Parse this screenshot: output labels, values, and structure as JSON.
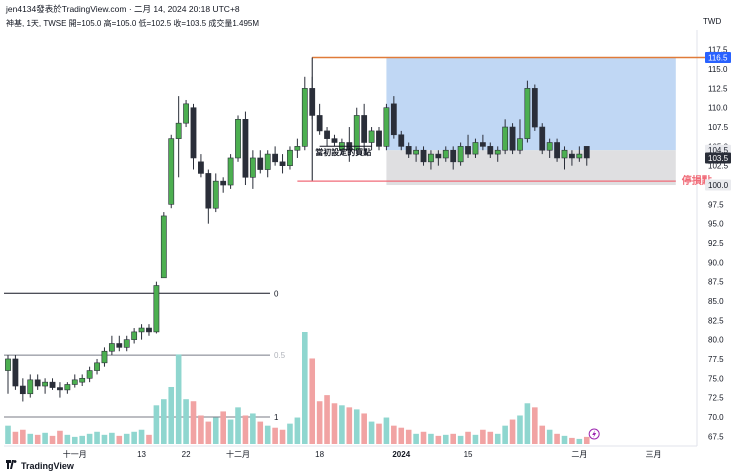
{
  "header": {
    "title": "jen4134發表於TradingView.com · 二月 14, 2024 20:18 UTC+8",
    "subtitle": "神基, 1天, TWSE  開=105.0  高=105.0  低=102.5  收=103.5  成交量1.495M",
    "currency": "TWD"
  },
  "footer": {
    "brand": "TradingView"
  },
  "chart_data": {
    "type": "candlestick",
    "ylim": [
      66.5,
      118.5
    ],
    "y_ticks": [
      "117.5",
      "115.0",
      "112.5",
      "110.0",
      "107.5",
      "105.0",
      "102.5",
      "100.0",
      "97.5",
      "95.0",
      "92.5",
      "90.0",
      "87.5",
      "85.0",
      "82.5",
      "80.0",
      "77.5",
      "75.0",
      "72.5",
      "70.0",
      "67.5"
    ],
    "x_ticks": [
      {
        "i": 9,
        "label": "十一月"
      },
      {
        "i": 18,
        "label": "13"
      },
      {
        "i": 24,
        "label": "22"
      },
      {
        "i": 31,
        "label": "十二月"
      },
      {
        "i": 42,
        "label": "18"
      },
      {
        "i": 53,
        "label": "2024"
      },
      {
        "i": 62,
        "label": "15"
      },
      {
        "i": 77,
        "label": "二月"
      },
      {
        "i": 87,
        "label": "三月"
      },
      {
        "i": 100,
        "label": "18"
      }
    ],
    "price_labels": [
      {
        "value": 116.5,
        "label": "116.5",
        "style": "blue"
      },
      {
        "value": 104.5,
        "label": "104.5",
        "style": "light"
      },
      {
        "value": 103.5,
        "label": "103.5",
        "style": "dark"
      },
      {
        "value": 100.0,
        "label": "100.0",
        "style": "light"
      }
    ],
    "annotations": {
      "target_line": {
        "value": 116.5,
        "color": "#e07b39",
        "from_i": 41,
        "to_i": 95
      },
      "stop_line": {
        "value": 100.5,
        "color": "#f06b78",
        "from_i": 39,
        "to_i": 90,
        "label": "停損點"
      },
      "entry_label": "當初設定的買點",
      "entry_value": 104.5,
      "profit_box": {
        "top": 116.5,
        "bottom": 104.5,
        "from_i": 51,
        "to_i": 90,
        "color": "#b5d0f2"
      },
      "loss_box": {
        "top": 104.5,
        "bottom": 100.0,
        "from_i": 51,
        "to_i": 90,
        "color": "#d9d9dc"
      },
      "fib_levels": [
        {
          "label": "0",
          "price": 86.0
        },
        {
          "label": "0.5",
          "price": 78.0
        },
        {
          "label": "1",
          "price": 70.0
        }
      ]
    },
    "candles": [
      {
        "o": 76.0,
        "h": 78.0,
        "l": 73.0,
        "c": 77.5
      },
      {
        "o": 77.5,
        "h": 78.0,
        "l": 73.5,
        "c": 74.0
      },
      {
        "o": 74.0,
        "h": 75.0,
        "l": 72.0,
        "c": 73.0
      },
      {
        "o": 73.0,
        "h": 75.5,
        "l": 72.5,
        "c": 74.8
      },
      {
        "o": 74.8,
        "h": 75.5,
        "l": 73.5,
        "c": 74.0
      },
      {
        "o": 74.0,
        "h": 75.0,
        "l": 73.0,
        "c": 74.5
      },
      {
        "o": 74.5,
        "h": 75.0,
        "l": 73.5,
        "c": 73.8
      },
      {
        "o": 73.8,
        "h": 74.5,
        "l": 72.5,
        "c": 73.5
      },
      {
        "o": 73.5,
        "h": 74.5,
        "l": 73.0,
        "c": 74.2
      },
      {
        "o": 74.2,
        "h": 75.5,
        "l": 73.8,
        "c": 74.8
      },
      {
        "o": 74.5,
        "h": 75.5,
        "l": 74.0,
        "c": 75.0
      },
      {
        "o": 75.0,
        "h": 76.5,
        "l": 74.5,
        "c": 76.0
      },
      {
        "o": 76.0,
        "h": 77.5,
        "l": 75.5,
        "c": 77.0
      },
      {
        "o": 77.0,
        "h": 79.0,
        "l": 76.5,
        "c": 78.5
      },
      {
        "o": 78.5,
        "h": 80.5,
        "l": 78.0,
        "c": 79.5
      },
      {
        "o": 79.5,
        "h": 80.5,
        "l": 78.5,
        "c": 79.0
      },
      {
        "o": 79.0,
        "h": 80.5,
        "l": 78.5,
        "c": 80.0
      },
      {
        "o": 80.0,
        "h": 81.5,
        "l": 79.5,
        "c": 81.0
      },
      {
        "o": 81.0,
        "h": 82.0,
        "l": 80.0,
        "c": 81.5
      },
      {
        "o": 81.5,
        "h": 82.0,
        "l": 80.5,
        "c": 81.0
      },
      {
        "o": 81.0,
        "h": 87.5,
        "l": 80.8,
        "c": 87.0
      },
      {
        "o": 88.0,
        "h": 96.5,
        "l": 88.0,
        "c": 96.0
      },
      {
        "o": 97.5,
        "h": 106.5,
        "l": 97.0,
        "c": 106.0
      },
      {
        "o": 106.0,
        "h": 111.5,
        "l": 101.0,
        "c": 108.0
      },
      {
        "o": 108.0,
        "h": 111.0,
        "l": 107.5,
        "c": 110.5
      },
      {
        "o": 110.0,
        "h": 110.5,
        "l": 102.0,
        "c": 103.5
      },
      {
        "o": 103.0,
        "h": 104.0,
        "l": 101.0,
        "c": 101.5
      },
      {
        "o": 101.5,
        "h": 102.0,
        "l": 95.0,
        "c": 97.0
      },
      {
        "o": 97.0,
        "h": 101.5,
        "l": 96.5,
        "c": 100.5
      },
      {
        "o": 100.5,
        "h": 101.0,
        "l": 99.0,
        "c": 100.0
      },
      {
        "o": 100.0,
        "h": 104.0,
        "l": 99.5,
        "c": 103.5
      },
      {
        "o": 103.5,
        "h": 109.0,
        "l": 103.0,
        "c": 108.5
      },
      {
        "o": 108.5,
        "h": 109.5,
        "l": 100.0,
        "c": 101.0
      },
      {
        "o": 101.0,
        "h": 104.5,
        "l": 99.5,
        "c": 103.5
      },
      {
        "o": 103.5,
        "h": 104.5,
        "l": 101.5,
        "c": 102.0
      },
      {
        "o": 102.0,
        "h": 104.5,
        "l": 101.0,
        "c": 104.0
      },
      {
        "o": 104.0,
        "h": 105.0,
        "l": 102.5,
        "c": 103.0
      },
      {
        "o": 103.0,
        "h": 104.0,
        "l": 101.5,
        "c": 102.5
      },
      {
        "o": 102.5,
        "h": 105.0,
        "l": 102.0,
        "c": 104.5
      },
      {
        "o": 104.5,
        "h": 106.0,
        "l": 103.5,
        "c": 105.0
      },
      {
        "o": 105.0,
        "h": 114.0,
        "l": 104.5,
        "c": 112.5
      },
      {
        "o": 112.5,
        "h": 114.0,
        "l": 108.5,
        "c": 109.0
      },
      {
        "o": 109.0,
        "h": 110.5,
        "l": 106.5,
        "c": 107.0
      },
      {
        "o": 107.0,
        "h": 107.5,
        "l": 105.0,
        "c": 106.0
      },
      {
        "o": 106.0,
        "h": 106.5,
        "l": 105.0,
        "c": 105.5
      },
      {
        "o": 104.5,
        "h": 106.0,
        "l": 104.0,
        "c": 105.5
      },
      {
        "o": 105.5,
        "h": 107.5,
        "l": 103.0,
        "c": 104.5
      },
      {
        "o": 104.5,
        "h": 110.0,
        "l": 104.0,
        "c": 109.0
      },
      {
        "o": 109.0,
        "h": 110.5,
        "l": 104.5,
        "c": 105.5
      },
      {
        "o": 105.5,
        "h": 107.5,
        "l": 104.5,
        "c": 107.0
      },
      {
        "o": 107.0,
        "h": 107.5,
        "l": 104.5,
        "c": 105.0
      },
      {
        "o": 105.0,
        "h": 110.5,
        "l": 104.5,
        "c": 110.0
      },
      {
        "o": 110.5,
        "h": 111.5,
        "l": 106.0,
        "c": 106.5
      },
      {
        "o": 106.5,
        "h": 107.0,
        "l": 104.5,
        "c": 105.0
      },
      {
        "o": 105.0,
        "h": 105.5,
        "l": 103.5,
        "c": 104.0
      },
      {
        "o": 104.0,
        "h": 105.0,
        "l": 103.0,
        "c": 104.5
      },
      {
        "o": 104.5,
        "h": 105.0,
        "l": 102.5,
        "c": 103.0
      },
      {
        "o": 103.0,
        "h": 104.5,
        "l": 102.0,
        "c": 104.0
      },
      {
        "o": 104.0,
        "h": 104.5,
        "l": 102.5,
        "c": 103.5
      },
      {
        "o": 103.5,
        "h": 105.0,
        "l": 103.0,
        "c": 104.5
      },
      {
        "o": 104.5,
        "h": 105.0,
        "l": 102.0,
        "c": 103.0
      },
      {
        "o": 103.0,
        "h": 105.5,
        "l": 102.5,
        "c": 105.0
      },
      {
        "o": 105.0,
        "h": 106.5,
        "l": 103.5,
        "c": 104.0
      },
      {
        "o": 104.0,
        "h": 106.0,
        "l": 103.5,
        "c": 105.5
      },
      {
        "o": 105.5,
        "h": 106.5,
        "l": 104.5,
        "c": 105.0
      },
      {
        "o": 105.0,
        "h": 105.5,
        "l": 103.5,
        "c": 104.0
      },
      {
        "o": 104.0,
        "h": 105.0,
        "l": 103.0,
        "c": 104.5
      },
      {
        "o": 104.5,
        "h": 108.5,
        "l": 104.0,
        "c": 107.5
      },
      {
        "o": 107.5,
        "h": 108.0,
        "l": 104.0,
        "c": 104.5
      },
      {
        "o": 104.5,
        "h": 108.5,
        "l": 104.0,
        "c": 106.0
      },
      {
        "o": 106.0,
        "h": 113.5,
        "l": 105.5,
        "c": 112.5
      },
      {
        "o": 112.5,
        "h": 113.0,
        "l": 107.0,
        "c": 107.5
      },
      {
        "o": 107.5,
        "h": 108.0,
        "l": 104.0,
        "c": 104.5
      },
      {
        "o": 104.5,
        "h": 106.0,
        "l": 103.5,
        "c": 105.5
      },
      {
        "o": 105.5,
        "h": 106.0,
        "l": 103.0,
        "c": 103.5
      },
      {
        "o": 103.5,
        "h": 105.0,
        "l": 102.0,
        "c": 104.5
      },
      {
        "o": 104.0,
        "h": 104.5,
        "l": 102.5,
        "c": 103.5
      },
      {
        "o": 103.5,
        "h": 105.0,
        "l": 103.0,
        "c": 104.0
      },
      {
        "o": 105.0,
        "h": 105.0,
        "l": 102.5,
        "c": 103.5
      }
    ],
    "volume_max": 110,
    "volumes": [
      18,
      12,
      14,
      10,
      9,
      11,
      8,
      13,
      9,
      7,
      8,
      10,
      12,
      9,
      11,
      8,
      10,
      12,
      14,
      9,
      38,
      44,
      56,
      88,
      44,
      42,
      28,
      22,
      26,
      32,
      24,
      36,
      28,
      30,
      22,
      18,
      16,
      14,
      20,
      26,
      110,
      84,
      42,
      48,
      40,
      38,
      36,
      34,
      30,
      22,
      20,
      26,
      18,
      16,
      14,
      10,
      12,
      10,
      8,
      9,
      10,
      8,
      12,
      9,
      14,
      12,
      10,
      18,
      24,
      28,
      40,
      36,
      18,
      14,
      10,
      8,
      6,
      5,
      7
    ]
  }
}
